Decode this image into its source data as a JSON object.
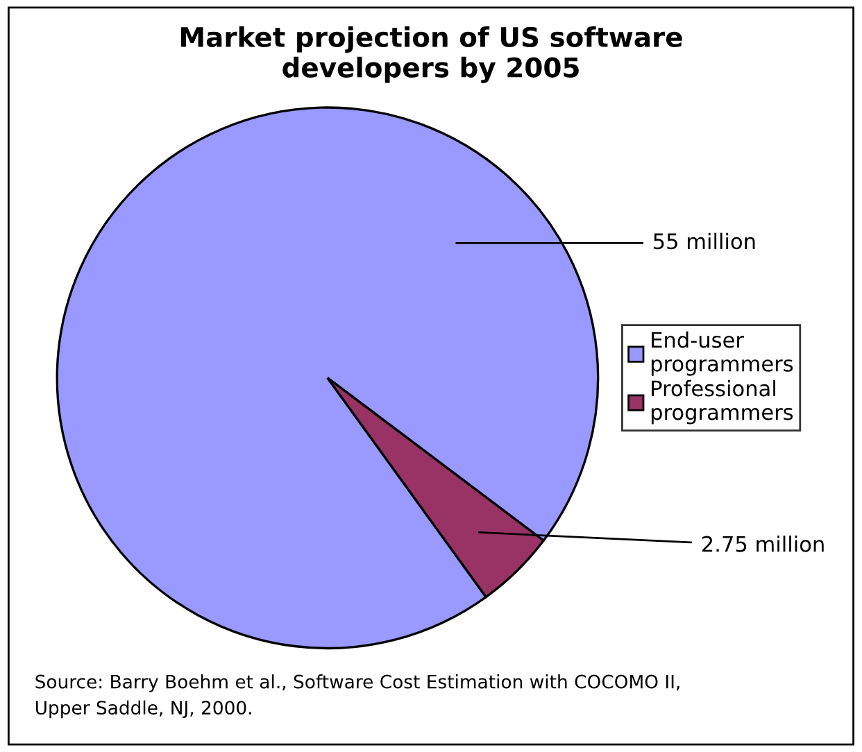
{
  "chart_data": {
    "type": "pie",
    "title": "Market projection of US software\ndevelopers by 2005",
    "categories": [
      "End-user\nprogrammers",
      "Professional\nprogrammers"
    ],
    "values": [
      55,
      2.75
    ],
    "colors": [
      "#9999ff",
      "#993366"
    ],
    "value_labels": [
      "55 million",
      "2.75 million"
    ],
    "legend": "right",
    "annotations": [
      "Source: Barry Boehm et al., Software Cost Estimation with COCOMO II,\nUpper Saddle, NJ, 2000."
    ]
  }
}
